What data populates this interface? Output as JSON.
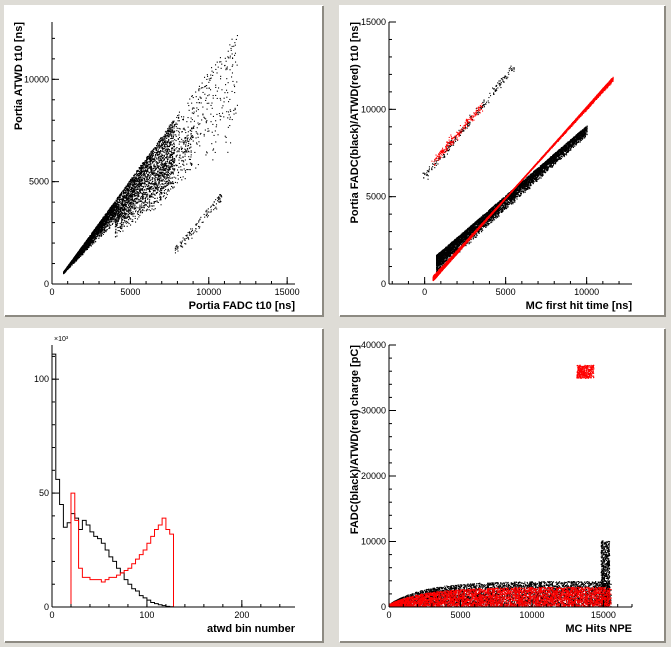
{
  "colors": {
    "pad_bg": "#ffffff",
    "canvas_bg": "#dedcd6",
    "pad_border_light": "#ffffff",
    "pad_border_dark": "#8d8a82",
    "black_series": "#000000",
    "red_series": "#ff0000"
  },
  "chart_data": [
    {
      "type": "scatter",
      "xlabel": "Portia FADC t10 [ns]",
      "ylabel": "Portia ATWD t10 [ns]",
      "xlim": [
        0,
        15500
      ],
      "ylim": [
        0,
        12800
      ],
      "xticks": [
        0,
        5000,
        10000,
        15000
      ],
      "yticks": [
        0,
        5000,
        10000
      ],
      "tick_labels_x": [
        "0",
        "5000",
        "10000",
        "15000"
      ],
      "tick_labels_y": [
        "0",
        "5000",
        "10000"
      ],
      "series": [
        {
          "color": "#000000",
          "regions": [
            {
              "kind": "band",
              "x_min": 700,
              "x_max": 11800,
              "upper_slope": 1.06,
              "upper_offset": -150,
              "lower_slope_low": 0.75,
              "lower_slope_high": 0.55,
              "density": "dense",
              "ends_dense_at": 7800
            },
            {
              "kind": "band",
              "x_min": 6500,
              "x_max": 9000,
              "upper_slope": 1.0,
              "upper_offset": -1200,
              "lower_slope_low": 0.6,
              "lower_slope_high": 0.6,
              "density": "sparse"
            },
            {
              "kind": "band",
              "x_min": 7800,
              "x_max": 10800,
              "upper_slope": 0.9,
              "upper_offset": -5200,
              "lower_slope_low": 0.6,
              "lower_slope_high": 0.6,
              "density": "sparse_line"
            }
          ]
        }
      ]
    },
    {
      "type": "scatter",
      "xlabel": "MC first hit time [ns]",
      "ylabel": "Portia FADC(black)/ATWD(red) t10 [ns]",
      "xlim": [
        -2200,
        12800
      ],
      "ylim": [
        0,
        15000
      ],
      "xticks": [
        0,
        5000,
        10000
      ],
      "yticks": [
        0,
        5000,
        10000,
        15000
      ],
      "tick_labels_x": [
        "0",
        "5000",
        "10000"
      ],
      "tick_labels_y": [
        "0",
        "5000",
        "10000",
        "15000"
      ],
      "series": [
        {
          "color": "#000000",
          "regions": [
            {
              "kind": "band",
              "x_min": 700,
              "x_max": 10000,
              "upper_slope": 0.8,
              "upper_offset": 1100,
              "lower_slope_low": 0.85,
              "lower_slope_high": 0.85,
              "density": "dense"
            },
            {
              "kind": "line",
              "x_from": 0,
              "x_to": 5500,
              "y_from": 6200,
              "y_to": 12500,
              "density": "sparse"
            }
          ]
        },
        {
          "color": "#ff0000",
          "regions": [
            {
              "kind": "band",
              "x_min": 500,
              "x_max": 11600,
              "upper_slope": 1.05,
              "upper_offset": -300,
              "lower_slope_low": 1.0,
              "lower_slope_high": 1.0,
              "density": "dense"
            },
            {
              "kind": "line",
              "x_from": 500,
              "x_to": 3500,
              "y_from": 7000,
              "y_to": 10200,
              "density": "sparse"
            }
          ]
        }
      ]
    },
    {
      "type": "histogram",
      "xlabel": "atwd bin number",
      "ylabel": "",
      "exponent_label": "×10³",
      "xlim": [
        0,
        256
      ],
      "ylim": [
        0,
        115
      ],
      "xticks": [
        0,
        100,
        200
      ],
      "yticks": [
        0,
        50,
        100
      ],
      "tick_labels_x": [
        "0",
        "100",
        "200"
      ],
      "tick_labels_y": [
        "0",
        "50",
        "100"
      ],
      "bin_width": 4,
      "series": [
        {
          "color": "#000000",
          "values": [
            111,
            56,
            45,
            35,
            37,
            41,
            39,
            34,
            38,
            36,
            33,
            31,
            30,
            28,
            25,
            22,
            20,
            17,
            15,
            12,
            10,
            8,
            7,
            5,
            4,
            3,
            2,
            1.5,
            1,
            0.6,
            0.3,
            0.1
          ]
        },
        {
          "color": "#ff0000",
          "values": [
            0,
            0,
            0,
            0,
            0,
            50,
            38,
            17,
            13,
            13,
            12,
            12,
            12,
            11,
            12,
            13,
            13,
            14,
            15,
            16,
            17,
            19,
            21,
            23,
            25,
            28,
            31,
            34,
            36,
            39,
            34,
            32
          ]
        }
      ]
    },
    {
      "type": "scatter",
      "xlabel": "MC Hits NPE",
      "ylabel": "FADC(black)/ATWD(red) charge [pC]",
      "xlim": [
        0,
        17000
      ],
      "ylim": [
        0,
        40000
      ],
      "xticks": [
        0,
        5000,
        10000,
        15000
      ],
      "yticks": [
        0,
        10000,
        20000,
        30000,
        40000
      ],
      "tick_labels_x": [
        "0",
        "5000",
        "10000",
        "15000"
      ],
      "tick_labels_y": [
        "0",
        "10000",
        "20000",
        "30000",
        "40000"
      ],
      "series": [
        {
          "color": "#000000",
          "regions": [
            {
              "kind": "band",
              "x_min": 0,
              "x_max": 15500,
              "top_plateau": 3500,
              "density": "dense"
            },
            {
              "kind": "column",
              "x_min": 14800,
              "x_max": 15400,
              "y_min": 0,
              "y_max": 10200,
              "density": "dense"
            }
          ]
        },
        {
          "color": "#ff0000",
          "regions": [
            {
              "kind": "band",
              "x_min": 0,
              "x_max": 15500,
              "top_plateau": 2600,
              "density": "dense"
            },
            {
              "kind": "cluster",
              "x_min": 13100,
              "x_max": 14300,
              "y_min": 35000,
              "y_max": 37000,
              "density": "dense"
            }
          ]
        }
      ]
    }
  ]
}
